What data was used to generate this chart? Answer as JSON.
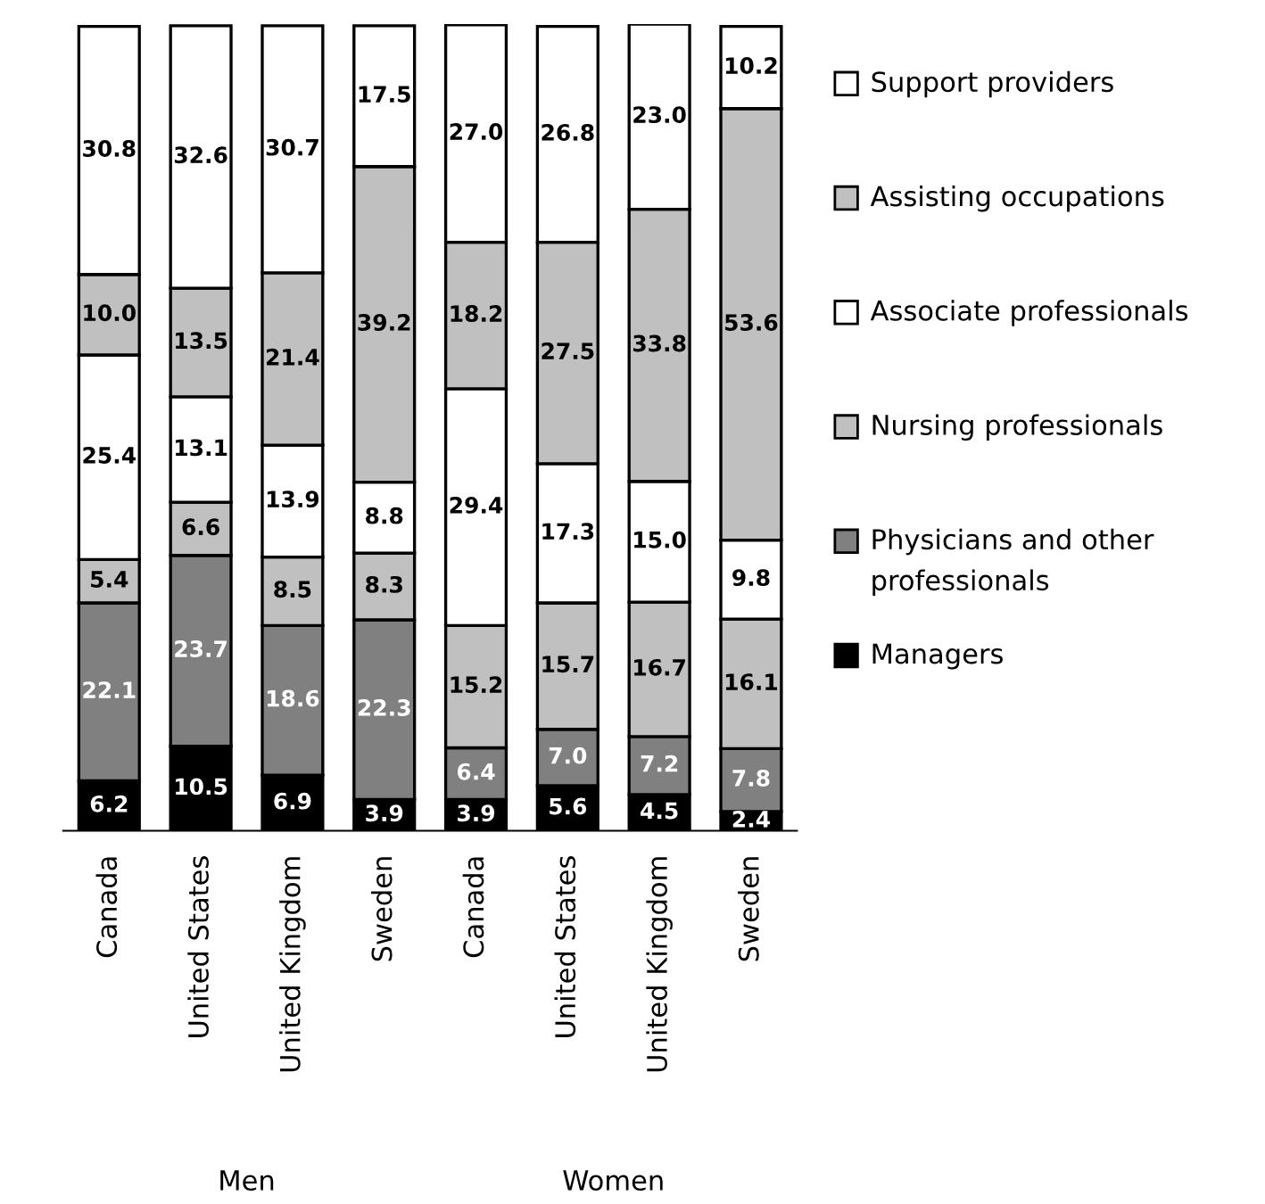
{
  "chart_data": {
    "type": "bar",
    "stacked": true,
    "legend": "right",
    "categories": [
      "Canada",
      "United States",
      "United Kingdom",
      "Sweden",
      "Canada",
      "United States",
      "United Kingdom",
      "Sweden"
    ],
    "annotations": [
      "Men",
      "Women"
    ],
    "series": [
      {
        "name": "Managers",
        "color": "#000000",
        "values": [
          6.2,
          10.5,
          6.9,
          3.9,
          3.9,
          5.6,
          4.5,
          2.4
        ],
        "value_labels": [
          "6.2",
          "10.5",
          "6.9",
          "3.9",
          "3.9",
          "5.6",
          "4.5",
          "2.4"
        ]
      },
      {
        "name": "Physicians and other professionals",
        "color": "#808080",
        "values": [
          22.1,
          23.7,
          18.6,
          22.3,
          6.4,
          7.0,
          7.2,
          7.8
        ],
        "value_labels": [
          "22.1",
          "23.7",
          "18.6",
          "22.3",
          "6.4",
          "7.0",
          "7.2",
          "7.8"
        ]
      },
      {
        "name": "Nursing professionals",
        "color": "#c0c0c0",
        "values": [
          5.4,
          6.6,
          8.5,
          8.3,
          15.2,
          15.7,
          16.7,
          16.1
        ],
        "value_labels": [
          "5.4",
          "6.6",
          "8.5",
          "8.3",
          "15.2",
          "15.7",
          "16.7",
          "16.1"
        ]
      },
      {
        "name": "Associate professionals",
        "color": "#ffffff",
        "values": [
          25.4,
          13.1,
          13.9,
          8.8,
          29.4,
          17.3,
          15.0,
          9.8
        ],
        "value_labels": [
          "25.4",
          "13.1",
          "13.9",
          "8.8",
          "29.4",
          "17.3",
          "15.0",
          "9.8"
        ]
      },
      {
        "name": "Assisting occupations",
        "color": "#c0c0c0",
        "values": [
          10.0,
          13.5,
          21.4,
          39.2,
          18.2,
          27.5,
          33.8,
          53.6
        ],
        "value_labels": [
          "10.0",
          "13.5",
          "21.4",
          "39.2",
          "18.2",
          "27.5",
          "33.8",
          "53.6"
        ]
      },
      {
        "name": "Support providers",
        "color": "#ffffff",
        "values": [
          30.8,
          32.6,
          30.7,
          17.5,
          27.0,
          26.8,
          23.0,
          10.2
        ],
        "value_labels": [
          "30.8",
          "32.6",
          "30.7",
          "17.5",
          "27.0",
          "26.8",
          "23.0",
          "10.2"
        ]
      }
    ]
  }
}
